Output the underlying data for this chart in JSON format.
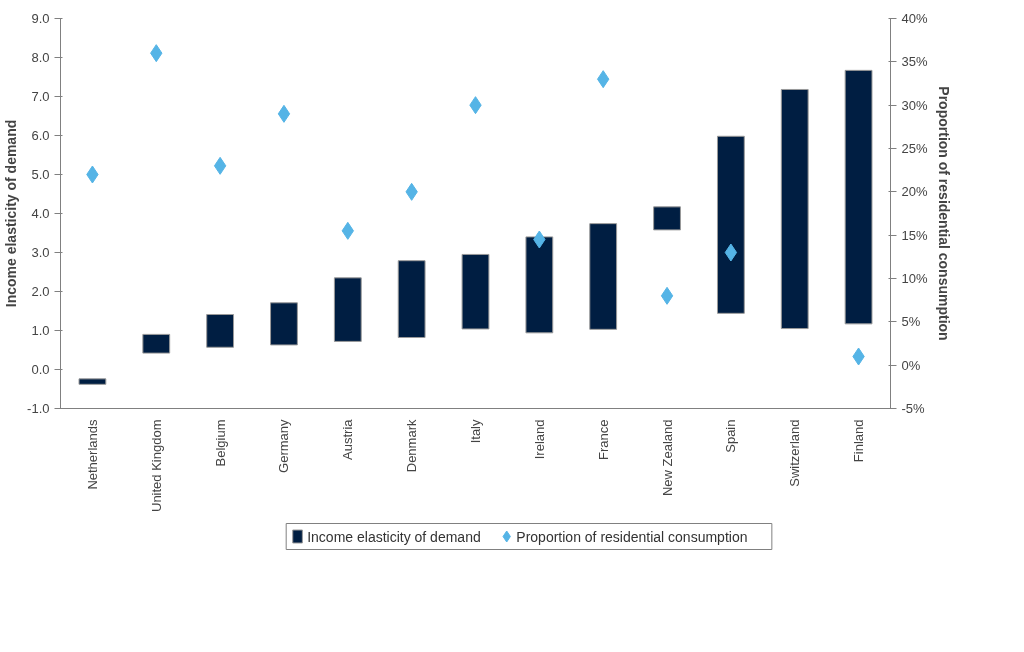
{
  "chart_data": {
    "type": "bar",
    "ylabel": "Income elasticity of demand",
    "y2label": "Proportion of residential consumption",
    "categories": [
      "Netherlands",
      "United Kingdom",
      "Belgium",
      "Germany",
      "Austria",
      "Denmark",
      "Italy",
      "Ireland",
      "France",
      "New Zealand",
      "Spain",
      "Switzerland",
      "Finland"
    ],
    "series": [
      {
        "name": "Income elasticity of demand",
        "color": "#001e42",
        "base": [
          -0.38,
          0.42,
          0.57,
          0.63,
          0.72,
          0.82,
          1.04,
          0.94,
          1.03,
          3.58,
          1.44,
          1.05,
          1.17
        ],
        "values": [
          0.14,
          0.48,
          0.84,
          1.08,
          1.63,
          1.97,
          1.91,
          2.46,
          2.71,
          0.59,
          4.54,
          6.13,
          6.5
        ]
      },
      {
        "name": "Proportion of residential consumption",
        "type": "scatter",
        "axis": "y2",
        "color": "#55b4e6",
        "values": [
          22,
          36,
          23,
          29,
          15.5,
          20,
          30,
          14.5,
          33,
          8,
          13,
          null,
          1
        ]
      }
    ],
    "ylim": [
      -1,
      9
    ],
    "yticks": [
      {
        "value": -1,
        "label": "-1.0"
      },
      {
        "value": 0,
        "label": "0.0"
      },
      {
        "value": 1,
        "label": "1.0"
      },
      {
        "value": 2,
        "label": "2.0"
      },
      {
        "value": 3,
        "label": "3.0"
      },
      {
        "value": 4,
        "label": "4.0"
      },
      {
        "value": 5,
        "label": "5.0"
      },
      {
        "value": 6,
        "label": "6.0"
      },
      {
        "value": 7,
        "label": "7.0"
      },
      {
        "value": 8,
        "label": "8.0"
      },
      {
        "value": 9,
        "label": "9.0"
      }
    ],
    "y2lim": [
      -5,
      40
    ],
    "y2ticks": [
      {
        "value": -5,
        "label": "-5%"
      },
      {
        "value": 0,
        "label": "0%"
      },
      {
        "value": 5,
        "label": "5%"
      },
      {
        "value": 10,
        "label": "10%"
      },
      {
        "value": 15,
        "label": "15%"
      },
      {
        "value": 20,
        "label": "20%"
      },
      {
        "value": 25,
        "label": "25%"
      },
      {
        "value": 30,
        "label": "30%"
      },
      {
        "value": 35,
        "label": "35%"
      },
      {
        "value": 40,
        "label": "40%"
      }
    ],
    "marker": "diamond",
    "grid": false,
    "legend": "bottom"
  }
}
